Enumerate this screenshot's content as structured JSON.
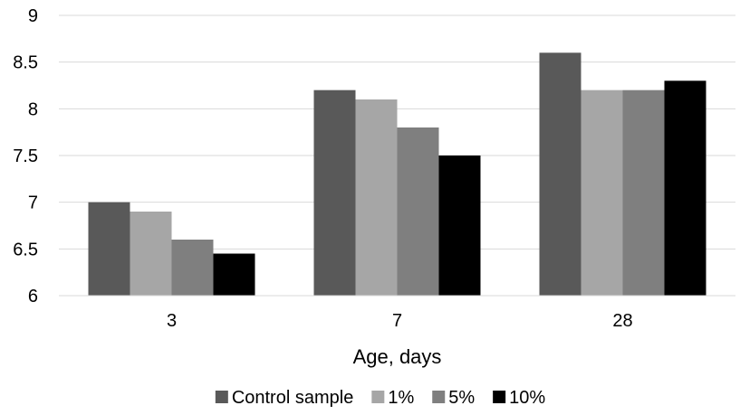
{
  "chart_data": {
    "type": "bar",
    "title": "",
    "xlabel": "Age, days",
    "ylabel": "",
    "categories": [
      "3",
      "7",
      "28"
    ],
    "ylim": [
      6,
      9
    ],
    "yticks": [
      "6",
      "6.5",
      "7",
      "7.5",
      "8",
      "8.5",
      "9"
    ],
    "grid": true,
    "legend_position": "bottom",
    "series": [
      {
        "name": "Control sample",
        "color": "#595959",
        "values": [
          7.0,
          8.2,
          8.6
        ]
      },
      {
        "name": "1%",
        "color": "#a6a6a6",
        "values": [
          6.9,
          8.1,
          8.2
        ]
      },
      {
        "name": "5%",
        "color": "#7f7f7f",
        "values": [
          6.6,
          7.8,
          8.2
        ]
      },
      {
        "name": "10%",
        "color": "#000000",
        "values": [
          6.45,
          7.5,
          8.3
        ]
      }
    ]
  }
}
